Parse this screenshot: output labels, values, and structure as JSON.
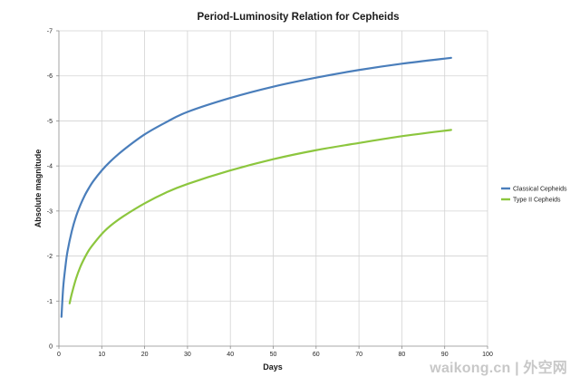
{
  "chart_data": {
    "type": "line",
    "title": "Period-Luminosity Relation for Cepheids",
    "xlabel": "Days",
    "ylabel": "Absolute magnitude",
    "xlim": [
      0,
      100
    ],
    "ylim": [
      0,
      -7
    ],
    "y_reversed": true,
    "x_ticks": [
      0,
      10,
      20,
      30,
      40,
      50,
      60,
      70,
      80,
      90,
      100
    ],
    "y_ticks": [
      0,
      -1,
      -2,
      -3,
      -4,
      -5,
      -6,
      -7
    ],
    "grid": true,
    "legend_position": "right",
    "series": [
      {
        "name": "Classical Cepheids",
        "color": "#4a7ebb",
        "x": [
          0.6,
          1,
          1.5,
          2,
          3,
          4,
          5,
          6,
          7,
          8,
          10,
          12,
          15,
          20,
          25,
          30,
          40,
          50,
          60,
          70,
          80,
          91.5
        ],
        "y": [
          -0.65,
          -1.3,
          -1.75,
          -2.1,
          -2.55,
          -2.88,
          -3.13,
          -3.34,
          -3.51,
          -3.66,
          -3.9,
          -4.1,
          -4.35,
          -4.7,
          -4.97,
          -5.2,
          -5.51,
          -5.76,
          -5.96,
          -6.13,
          -6.27,
          -6.4
        ]
      },
      {
        "name": "Type II Cepheids",
        "color": "#8cc63e",
        "x": [
          2.5,
          3,
          4,
          5,
          6,
          7,
          8,
          10,
          12,
          15,
          20,
          25,
          30,
          40,
          50,
          60,
          70,
          80,
          91.5
        ],
        "y": [
          -0.95,
          -1.16,
          -1.5,
          -1.76,
          -1.96,
          -2.13,
          -2.26,
          -2.49,
          -2.67,
          -2.88,
          -3.17,
          -3.41,
          -3.6,
          -3.9,
          -4.15,
          -4.35,
          -4.51,
          -4.66,
          -4.8
        ]
      }
    ]
  },
  "watermark": {
    "text": "waikong.cn | 外空网"
  }
}
